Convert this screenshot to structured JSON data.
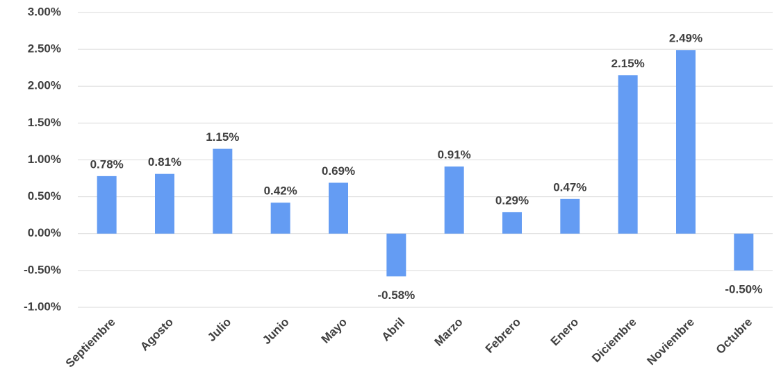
{
  "chart_data": {
    "type": "bar",
    "categories": [
      "Septiembre",
      "Agosto",
      "Julio",
      "Junio",
      "Mayo",
      "Abril",
      "Marzo",
      "Febrero",
      "Enero",
      "Diciembre",
      "Noviembre",
      "Octubre"
    ],
    "values": [
      0.78,
      0.81,
      1.15,
      0.42,
      0.69,
      -0.58,
      0.91,
      0.29,
      0.47,
      2.15,
      2.49,
      -0.5
    ],
    "value_labels": [
      "0.78%",
      "0.81%",
      "1.15%",
      "0.42%",
      "0.69%",
      "-0.58%",
      "0.91%",
      "0.29%",
      "0.47%",
      "2.15%",
      "2.49%",
      "-0.50%"
    ],
    "color": "#649cf3",
    "ylim": [
      -1,
      3
    ],
    "yticks": [
      {
        "value": -1,
        "label": "-1.00%"
      },
      {
        "value": -0.5,
        "label": "-0.50%"
      },
      {
        "value": 0,
        "label": "0.00%"
      },
      {
        "value": 0.5,
        "label": "0.50%"
      },
      {
        "value": 1,
        "label": "1.00%"
      },
      {
        "value": 1.5,
        "label": "1.50%"
      },
      {
        "value": 2,
        "label": "2.00%"
      },
      {
        "value": 2.5,
        "label": "2.50%"
      },
      {
        "value": 3,
        "label": "3.00%"
      }
    ],
    "grid": true
  }
}
